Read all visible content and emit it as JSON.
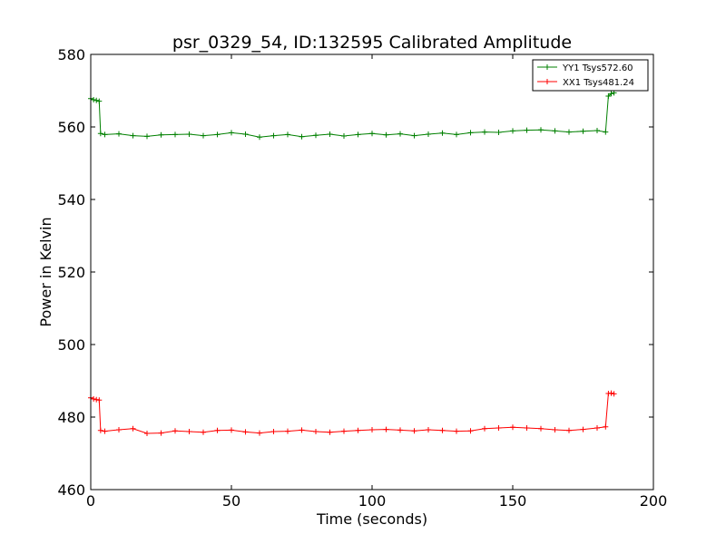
{
  "chart_data": {
    "type": "line",
    "title": "psr_0329_54, ID:132595 Calibrated Amplitude",
    "xlabel": "Time (seconds)",
    "ylabel": "Power in Kelvin",
    "xlim": [
      0,
      200
    ],
    "ylim": [
      460,
      580
    ],
    "xticks": [
      0,
      50,
      100,
      150,
      200
    ],
    "yticks": [
      460,
      480,
      500,
      520,
      540,
      560,
      580
    ],
    "grid": false,
    "legend_position": "top-right",
    "marker": "+",
    "series": [
      {
        "name": "YY1 Tsys572.60",
        "color": "#008000",
        "x": [
          0,
          1,
          2,
          3,
          3.5,
          5,
          10,
          15,
          20,
          25,
          30,
          35,
          40,
          45,
          50,
          55,
          60,
          65,
          70,
          75,
          80,
          85,
          90,
          95,
          100,
          105,
          110,
          115,
          120,
          125,
          130,
          135,
          140,
          145,
          150,
          155,
          160,
          165,
          170,
          175,
          180,
          183,
          184,
          185,
          186
        ],
        "y": [
          567.8,
          567.5,
          567.3,
          567.1,
          558.2,
          557.9,
          558.1,
          557.6,
          557.4,
          557.8,
          557.9,
          558.0,
          557.6,
          557.9,
          558.4,
          558.0,
          557.2,
          557.6,
          557.9,
          557.3,
          557.7,
          558.0,
          557.5,
          557.9,
          558.2,
          557.8,
          558.1,
          557.6,
          558.0,
          558.3,
          557.9,
          558.4,
          558.6,
          558.5,
          558.9,
          559.1,
          559.2,
          558.9,
          558.6,
          558.8,
          559.0,
          558.6,
          568.5,
          569.2,
          569.4
        ]
      },
      {
        "name": "XX1 Tsys481.24",
        "color": "#ff0000",
        "x": [
          0,
          1,
          2,
          3,
          3.5,
          5,
          10,
          15,
          20,
          25,
          30,
          35,
          40,
          45,
          50,
          55,
          60,
          65,
          70,
          75,
          80,
          85,
          90,
          95,
          100,
          105,
          110,
          115,
          120,
          125,
          130,
          135,
          140,
          145,
          150,
          155,
          160,
          165,
          170,
          175,
          180,
          183,
          184,
          185,
          186
        ],
        "y": [
          485.3,
          485.0,
          484.8,
          484.7,
          476.3,
          476.1,
          476.5,
          476.8,
          475.5,
          475.6,
          476.2,
          476.0,
          475.8,
          476.3,
          476.4,
          475.9,
          475.6,
          476.0,
          476.1,
          476.4,
          476.0,
          475.8,
          476.1,
          476.3,
          476.5,
          476.6,
          476.4,
          476.2,
          476.5,
          476.3,
          476.1,
          476.2,
          476.8,
          477.0,
          477.2,
          477.0,
          476.8,
          476.5,
          476.3,
          476.6,
          477.0,
          477.3,
          486.5,
          486.6,
          486.4
        ]
      }
    ]
  }
}
